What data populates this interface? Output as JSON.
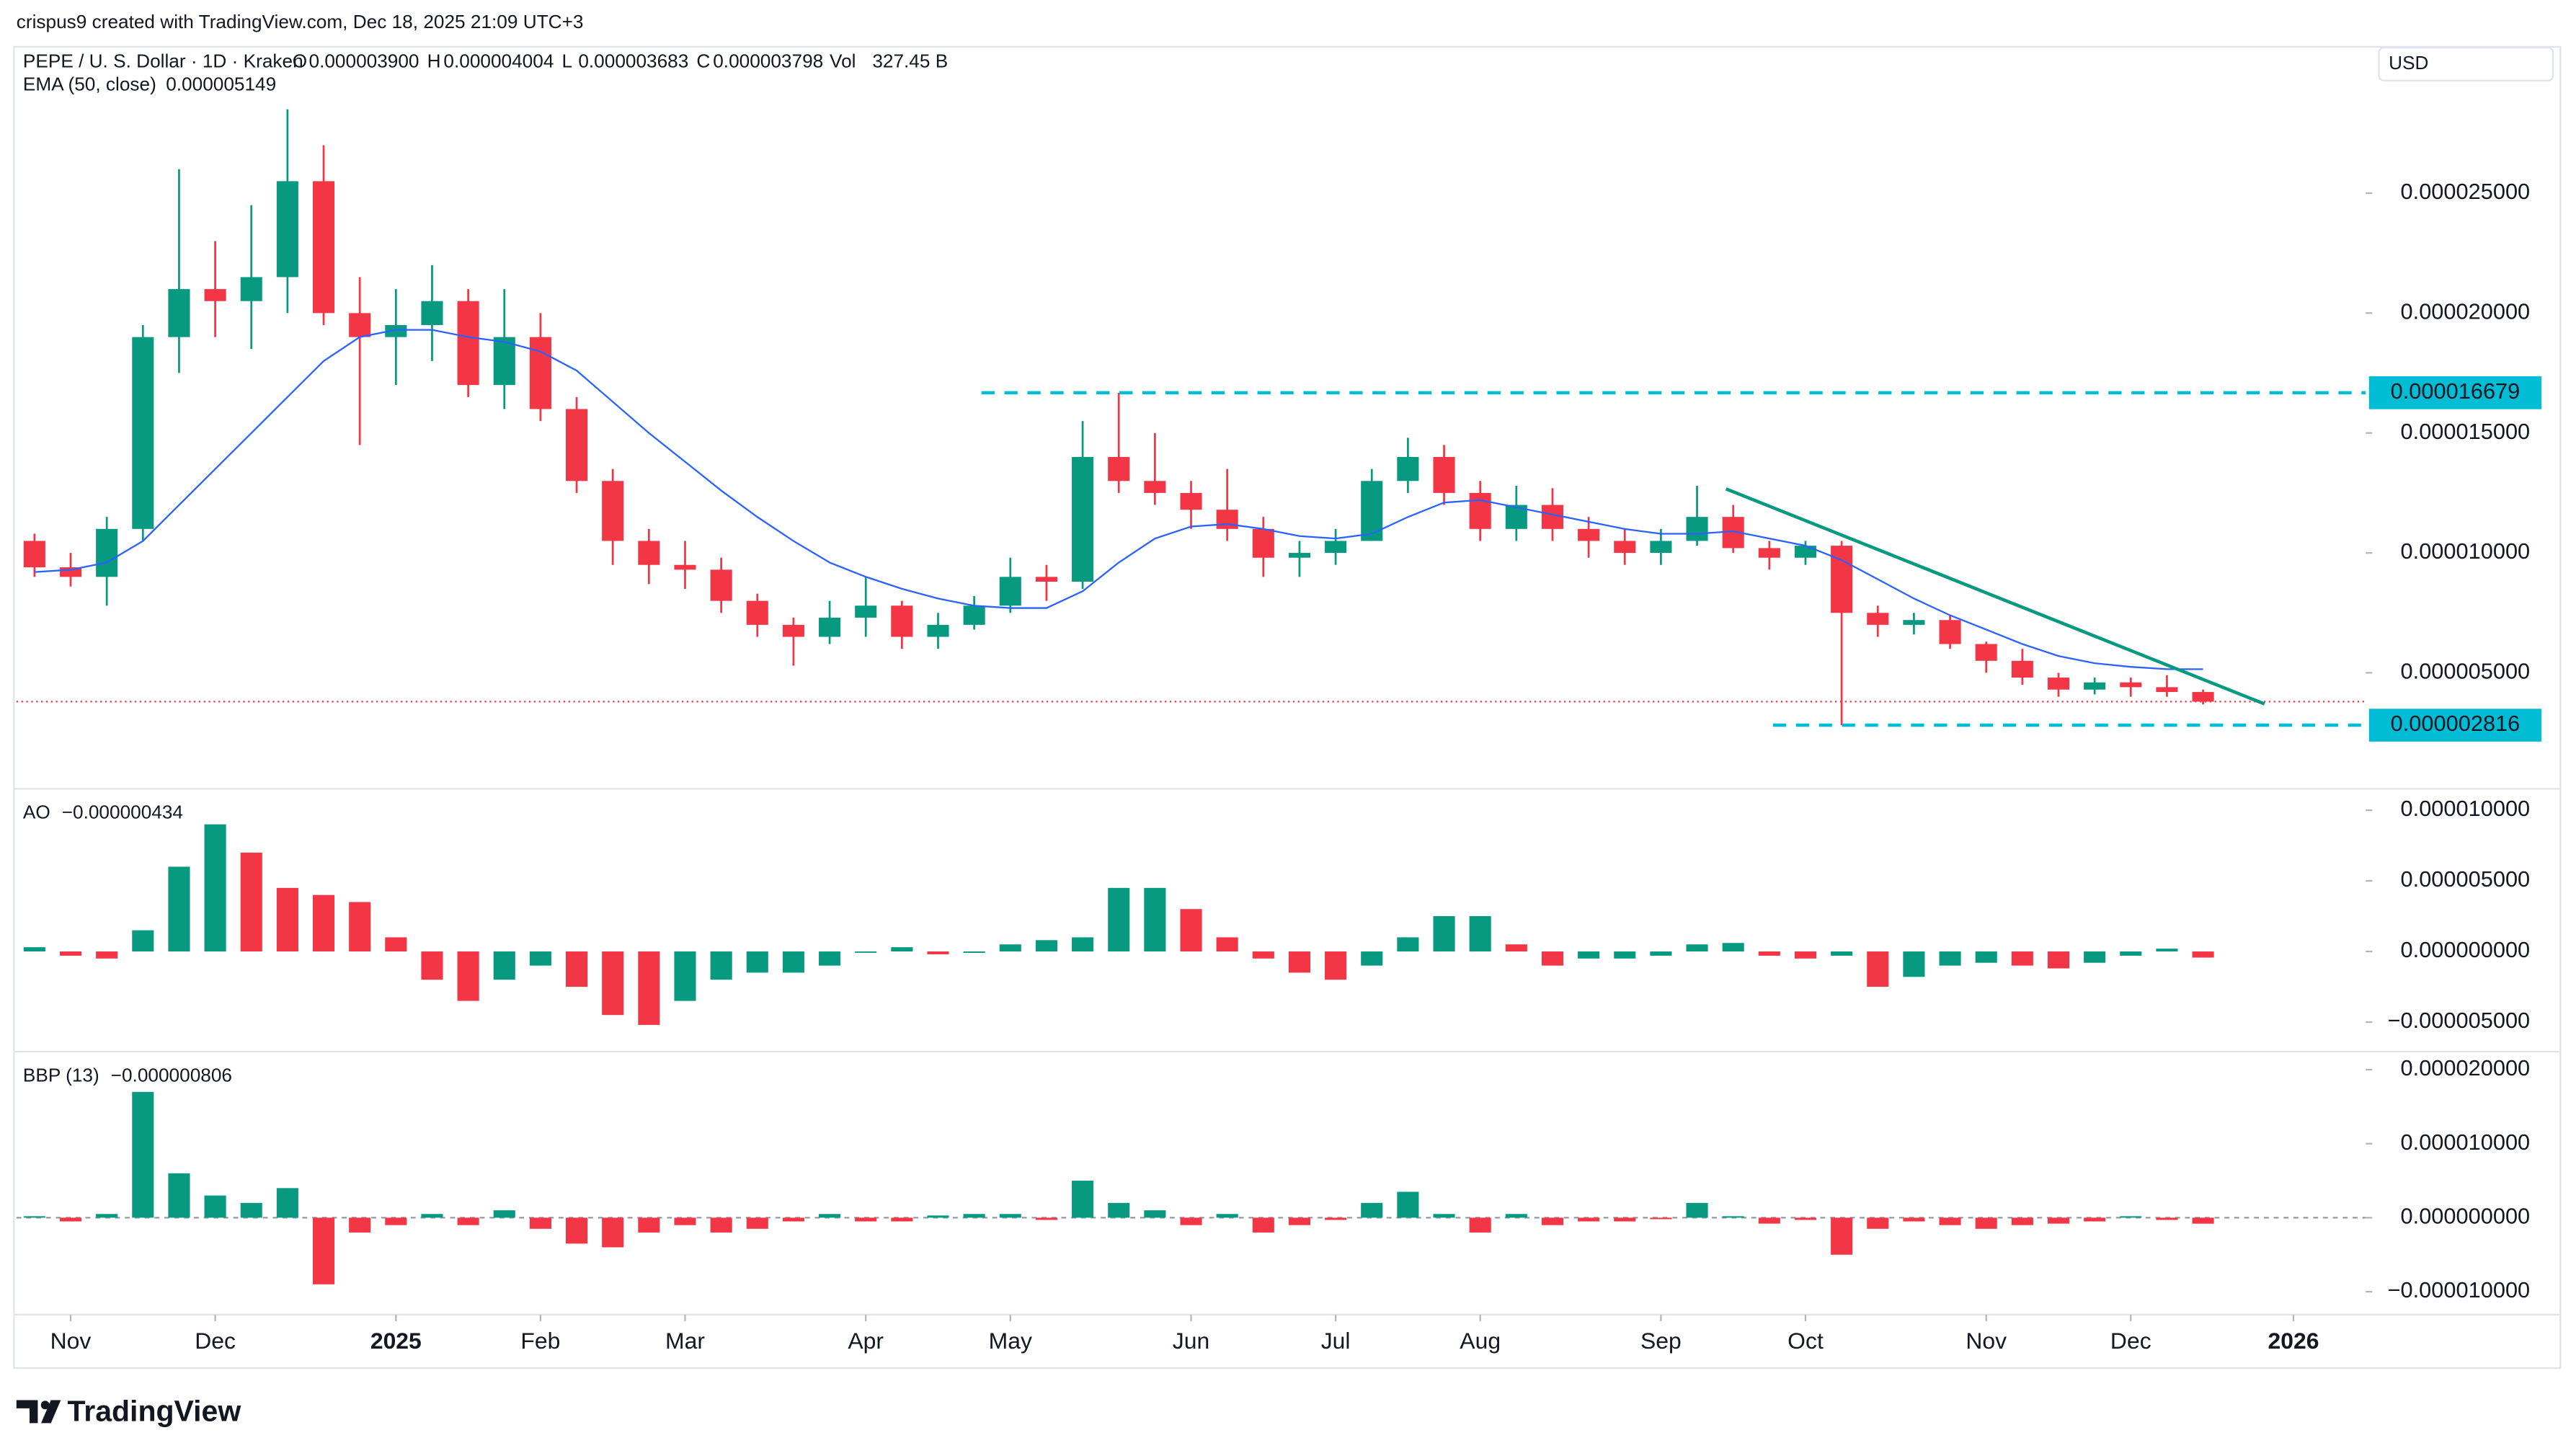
{
  "header": {
    "credit": "crispus9 created with TradingView.com, Dec 18, 2025 21:09 UTC+3",
    "currency": "USD"
  },
  "footer": {
    "brand": "TradingView"
  },
  "chart_data": [
    {
      "type": "candlestick",
      "title": "PEPE / U. S. Dollar · 1D · Kraken",
      "ohlc": [
        {
          "key": "O",
          "value": "0.000003900"
        },
        {
          "key": "H",
          "value": "0.000004004"
        },
        {
          "key": "L",
          "value": "0.000003683"
        },
        {
          "key": "C",
          "value": "0.000003798"
        },
        {
          "key": "Vol",
          "value": "327.45 B"
        }
      ],
      "x": [
        0,
        1,
        2,
        3,
        4,
        5,
        6,
        7,
        8,
        9,
        10,
        11,
        12,
        13,
        14,
        15,
        16,
        17,
        18,
        19,
        20,
        21,
        22,
        23,
        24,
        25,
        26,
        27,
        28,
        29,
        30,
        31,
        32,
        33,
        34,
        35,
        36,
        37,
        38,
        39,
        40,
        41,
        42,
        43,
        44,
        45,
        46,
        47,
        48,
        49,
        50,
        51,
        52,
        53,
        54,
        55,
        56,
        57,
        58,
        59,
        60
      ],
      "xlim": [
        -0.5,
        64.5
      ],
      "xticks": [
        {
          "value": 1,
          "label": "Nov"
        },
        {
          "value": 5,
          "label": "Dec"
        },
        {
          "value": 10,
          "label": "2025",
          "major": true
        },
        {
          "value": 14,
          "label": "Feb"
        },
        {
          "value": 18,
          "label": "Mar"
        },
        {
          "value": 23,
          "label": "Apr"
        },
        {
          "value": 27,
          "label": "May"
        },
        {
          "value": 32,
          "label": "Jun"
        },
        {
          "value": 36,
          "label": "Jul"
        },
        {
          "value": 40,
          "label": "Aug"
        },
        {
          "value": 45,
          "label": "Sep"
        },
        {
          "value": 49,
          "label": "Oct"
        },
        {
          "value": 54,
          "label": "Nov"
        },
        {
          "value": 58,
          "label": "Dec"
        },
        {
          "value": 62.5,
          "label": "2026",
          "major": true
        }
      ],
      "open": [
        1.05e-05,
        9.4e-06,
        9e-06,
        1.1e-05,
        1.9e-05,
        2.1e-05,
        2.05e-05,
        2.15e-05,
        2.55e-05,
        2e-05,
        1.9e-05,
        1.95e-05,
        2.05e-05,
        1.7e-05,
        1.9e-05,
        1.6e-05,
        1.3e-05,
        1.05e-05,
        9.5e-06,
        9.3e-06,
        8e-06,
        7e-06,
        6.5e-06,
        7.3e-06,
        7.8e-06,
        6.5e-06,
        7e-06,
        7.8e-06,
        9e-06,
        8.8e-06,
        1.4e-05,
        1.3e-05,
        1.25e-05,
        1.18e-05,
        1.1e-05,
        9.8e-06,
        1e-05,
        1.05e-05,
        1.3e-05,
        1.4e-05,
        1.25e-05,
        1.1e-05,
        1.2e-05,
        1.1e-05,
        1.05e-05,
        1e-05,
        1.05e-05,
        1.15e-05,
        1.02e-05,
        9.8e-06,
        1.03e-05,
        7.5e-06,
        7e-06,
        7.2e-06,
        6.2e-06,
        5.5e-06,
        4.8e-06,
        4.3e-06,
        4.6e-06,
        4.4e-06,
        4.2e-06
      ],
      "high": [
        1.08e-05,
        1e-05,
        1.15e-05,
        1.95e-05,
        2.6e-05,
        2.3e-05,
        2.45e-05,
        2.85e-05,
        2.7e-05,
        2.15e-05,
        2.1e-05,
        2.2e-05,
        2.1e-05,
        2.1e-05,
        2e-05,
        1.65e-05,
        1.35e-05,
        1.1e-05,
        1.05e-05,
        9.8e-06,
        8.3e-06,
        7.3e-06,
        8e-06,
        9e-06,
        8e-06,
        7.5e-06,
        8.2e-06,
        9.8e-06,
        9.5e-06,
        1.55e-05,
        1.6679e-05,
        1.5e-05,
        1.3e-05,
        1.35e-05,
        1.15e-05,
        1.05e-05,
        1.1e-05,
        1.35e-05,
        1.48e-05,
        1.45e-05,
        1.3e-05,
        1.28e-05,
        1.27e-05,
        1.15e-05,
        1.1e-05,
        1.1e-05,
        1.28e-05,
        1.2e-05,
        1.05e-05,
        1.05e-05,
        1.05e-05,
        7.8e-06,
        7.5e-06,
        7.4e-06,
        6.3e-06,
        6e-06,
        5e-06,
        4.8e-06,
        4.8e-06,
        4.9e-06,
        4.3e-06
      ],
      "low": [
        9e-06,
        8.6e-06,
        7.8e-06,
        1.05e-05,
        1.75e-05,
        1.9e-05,
        1.85e-05,
        2e-05,
        1.95e-05,
        1.45e-05,
        1.7e-05,
        1.8e-05,
        1.65e-05,
        1.6e-05,
        1.55e-05,
        1.25e-05,
        9.5e-06,
        8.7e-06,
        8.5e-06,
        7.5e-06,
        6.5e-06,
        5.3e-06,
        6.2e-06,
        6.5e-06,
        6e-06,
        6e-06,
        6.8e-06,
        7.5e-06,
        8e-06,
        8.5e-06,
        1.25e-05,
        1.2e-05,
        1.1e-05,
        1.05e-05,
        9e-06,
        9e-06,
        9.5e-06,
        1.05e-05,
        1.25e-05,
        1.2e-05,
        1.05e-05,
        1.05e-05,
        1.05e-05,
        9.8e-06,
        9.5e-06,
        9.5e-06,
        1.03e-05,
        1e-05,
        9.3e-06,
        9.5e-06,
        2.816e-06,
        6.5e-06,
        6.6e-06,
        6e-06,
        5e-06,
        4.5e-06,
        4e-06,
        4.1e-06,
        4e-06,
        4e-06,
        3.683e-06
      ],
      "close": [
        9.4e-06,
        9e-06,
        1.1e-05,
        1.9e-05,
        2.1e-05,
        2.05e-05,
        2.15e-05,
        2.55e-05,
        2e-05,
        1.9e-05,
        1.95e-05,
        2.05e-05,
        1.7e-05,
        1.9e-05,
        1.6e-05,
        1.3e-05,
        1.05e-05,
        9.5e-06,
        9.3e-06,
        8e-06,
        7e-06,
        6.5e-06,
        7.3e-06,
        7.8e-06,
        6.5e-06,
        7e-06,
        7.8e-06,
        9e-06,
        8.8e-06,
        1.4e-05,
        1.3e-05,
        1.25e-05,
        1.18e-05,
        1.1e-05,
        9.8e-06,
        1e-05,
        1.05e-05,
        1.3e-05,
        1.4e-05,
        1.25e-05,
        1.1e-05,
        1.2e-05,
        1.1e-05,
        1.05e-05,
        1e-05,
        1.05e-05,
        1.15e-05,
        1.02e-05,
        9.8e-06,
        1.03e-05,
        7.5e-06,
        7e-06,
        7.2e-06,
        6.2e-06,
        5.5e-06,
        4.8e-06,
        4.3e-06,
        4.6e-06,
        4.4e-06,
        4.2e-06,
        3.798e-06
      ],
      "up_color": "#089981",
      "down_color": "#f23645",
      "ema": {
        "name": "EMA (50, close)",
        "value_label": "0.000005149",
        "color": "#2962ff",
        "values": [
          9.2e-06,
          9.3e-06,
          9.6e-06,
          1.05e-05,
          1.2e-05,
          1.35e-05,
          1.5e-05,
          1.65e-05,
          1.8e-05,
          1.9e-05,
          1.93e-05,
          1.93e-05,
          1.9e-05,
          1.88e-05,
          1.84e-05,
          1.76e-05,
          1.63e-05,
          1.5e-05,
          1.38e-05,
          1.26e-05,
          1.15e-05,
          1.05e-05,
          9.6e-06,
          9e-06,
          8.5e-06,
          8.1e-06,
          7.8e-06,
          7.7e-06,
          7.7e-06,
          8.4e-06,
          9.6e-06,
          1.06e-05,
          1.11e-05,
          1.12e-05,
          1.1e-05,
          1.07e-05,
          1.06e-05,
          1.08e-05,
          1.15e-05,
          1.21e-05,
          1.22e-05,
          1.19e-05,
          1.16e-05,
          1.13e-05,
          1.1e-05,
          1.08e-05,
          1.08e-05,
          1.09e-05,
          1.06e-05,
          1.03e-05,
          9.7e-06,
          8.9e-06,
          8.1e-06,
          7.4e-06,
          6.8e-06,
          6.2e-06,
          5.7e-06,
          5.4e-06,
          5.25e-06,
          5.15e-06,
          5.149e-06
        ]
      },
      "ylim": [
        3e-07,
        3.1e-05
      ],
      "yticks": [
        {
          "value": 5e-06,
          "label": "0.000005000"
        },
        {
          "value": 1e-05,
          "label": "0.000010000"
        },
        {
          "value": 1.5e-05,
          "label": "0.000015000"
        },
        {
          "value": 2e-05,
          "label": "0.000020000"
        },
        {
          "value": 2.5e-05,
          "label": "0.000025000"
        }
      ],
      "levels": [
        {
          "value": 1.6679e-05,
          "label": "0.000016679",
          "x_from": 26.2,
          "color": "#00bcd4"
        },
        {
          "value": 2.816e-06,
          "label": "0.000002816",
          "x_from": 48.1,
          "color": "#00bcd4"
        }
      ],
      "trendline": {
        "x": [
          46.8,
          61.7
        ],
        "values": [
          1.267e-05,
          3.7e-06
        ],
        "color": "#089981"
      },
      "last_price_color": "#f23645"
    },
    {
      "type": "bar",
      "title": "AO",
      "value_label": "−0.000000434",
      "color_rule": "change",
      "up_color": "#089981",
      "down_color": "#f23645",
      "values": [
        3e-07,
        -3e-07,
        -5e-07,
        1.5e-06,
        6e-06,
        9e-06,
        7e-06,
        4.5e-06,
        4e-06,
        3.5e-06,
        1e-06,
        -2e-06,
        -3.5e-06,
        -2e-06,
        -1e-06,
        -2.5e-06,
        -4.5e-06,
        -5.2e-06,
        -3.5e-06,
        -2e-06,
        -1.5e-06,
        -1.5e-06,
        -1e-06,
        0,
        3e-07,
        -2e-07,
        -1e-07,
        5e-07,
        8e-07,
        1e-06,
        4.5e-06,
        4.5e-06,
        3e-06,
        1e-06,
        -5e-07,
        -1.5e-06,
        -2e-06,
        -1e-06,
        1e-06,
        2.5e-06,
        2.5e-06,
        5e-07,
        -1e-06,
        -5e-07,
        -5e-07,
        -3e-07,
        5e-07,
        6e-07,
        -3e-07,
        -5e-07,
        -3e-07,
        -2.5e-06,
        -1.8e-06,
        -1e-06,
        -8e-07,
        -1e-06,
        -1.2e-06,
        -8e-07,
        -3e-07,
        2e-07,
        -4.34e-07
      ],
      "ylim": [
        -7.1e-06,
        1.14e-05
      ],
      "yticks": [
        {
          "value": -5e-06,
          "label": "−0.000005000"
        },
        {
          "value": 0,
          "label": "0.000000000"
        },
        {
          "value": 5e-06,
          "label": "0.000005000"
        },
        {
          "value": 1e-05,
          "label": "0.000010000"
        }
      ]
    },
    {
      "type": "bar",
      "title": "BBP (13)",
      "value_label": "−0.000000806",
      "color_rule": "sign",
      "up_color": "#089981",
      "down_color": "#f23645",
      "zero_line": true,
      "values": [
        2e-07,
        -5e-07,
        5e-07,
        1.7e-05,
        6e-06,
        3e-06,
        2e-06,
        4e-06,
        -9e-06,
        -2e-06,
        -1e-06,
        5e-07,
        -1e-06,
        1e-06,
        -1.5e-06,
        -3.5e-06,
        -4e-06,
        -2e-06,
        -1e-06,
        -2e-06,
        -1.5e-06,
        -5e-07,
        5e-07,
        -5e-07,
        -5e-07,
        3e-07,
        5e-07,
        5e-07,
        -3e-07,
        5e-06,
        2e-06,
        1e-06,
        -1e-06,
        5e-07,
        -2e-06,
        -1e-06,
        -3e-07,
        2e-06,
        3.5e-06,
        5e-07,
        -2e-06,
        5e-07,
        -1e-06,
        -5e-07,
        -5e-07,
        -2e-07,
        2e-06,
        2e-07,
        -8e-07,
        -3e-07,
        -5e-06,
        -1.5e-06,
        -5e-07,
        -1e-06,
        -1.5e-06,
        -1e-06,
        -8e-07,
        -5e-07,
        2e-07,
        -3e-07,
        -8.06e-07
      ],
      "ylim": [
        -1.31e-05,
        2.22e-05
      ],
      "yticks": [
        {
          "value": -1e-05,
          "label": "−0.000010000"
        },
        {
          "value": 0,
          "label": "0.000000000"
        },
        {
          "value": 1e-05,
          "label": "0.000010000"
        },
        {
          "value": 2e-05,
          "label": "0.000020000"
        }
      ]
    }
  ]
}
